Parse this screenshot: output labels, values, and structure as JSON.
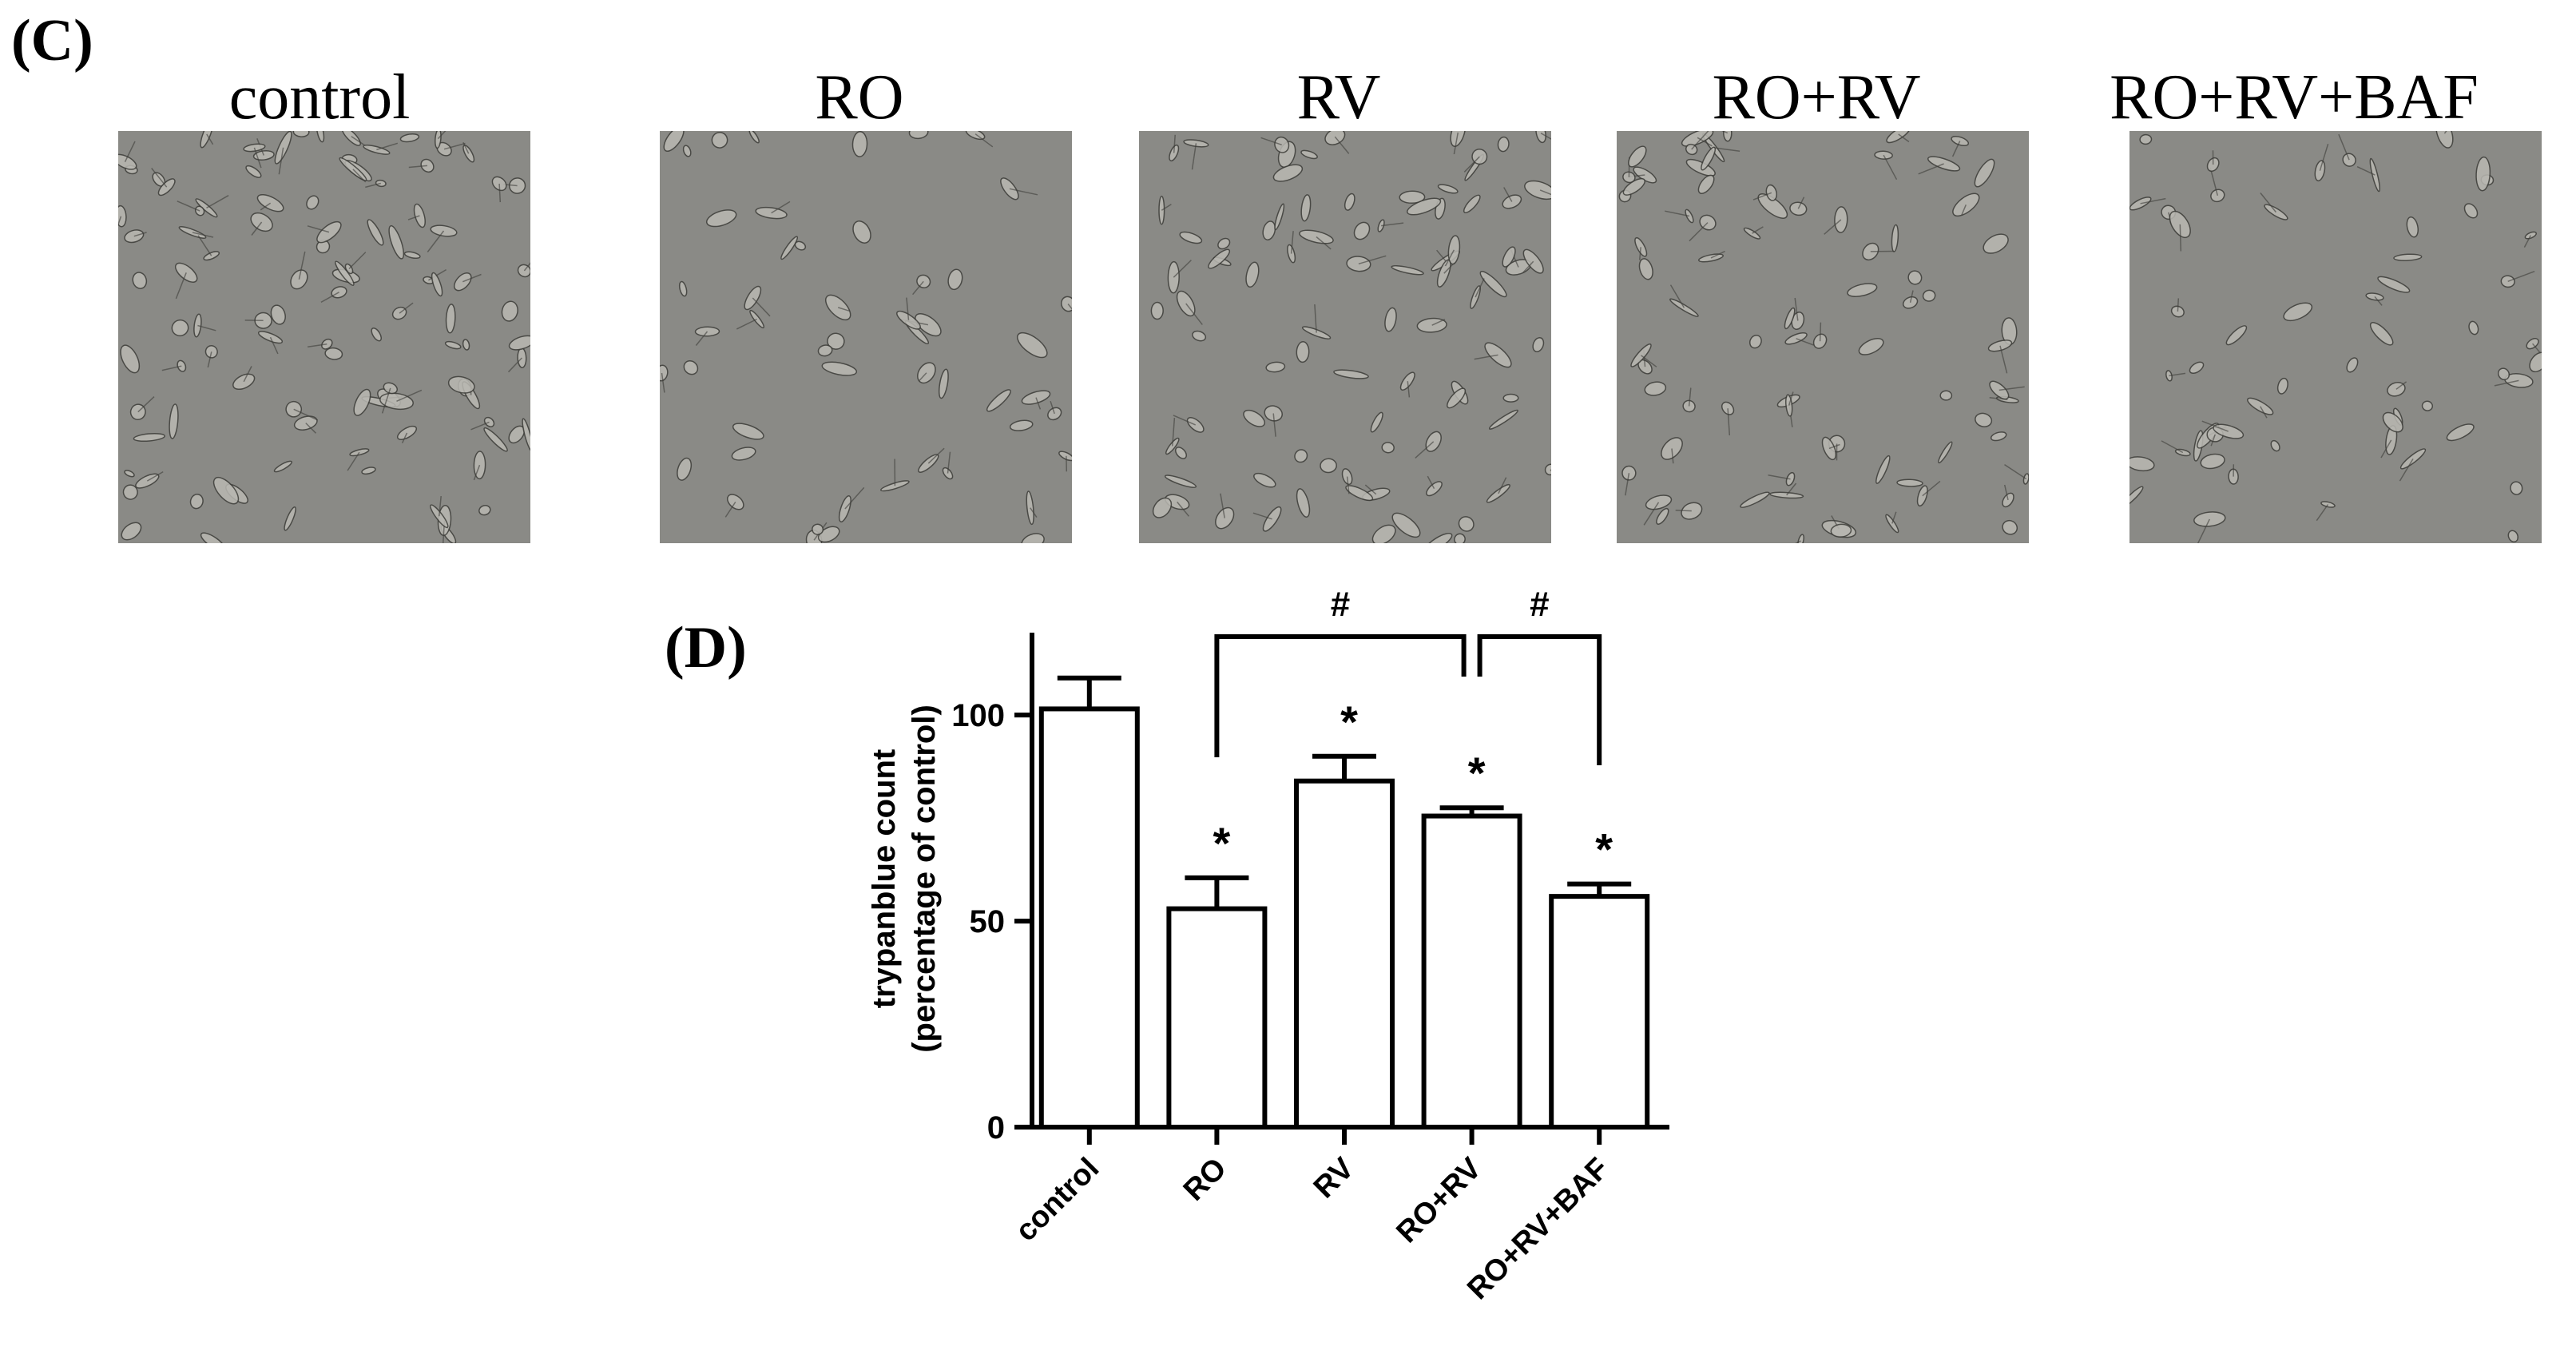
{
  "panels": {
    "c_label": "(C)",
    "d_label": "(D)"
  },
  "images": [
    {
      "title": "control",
      "density": 0.95
    },
    {
      "title": "RO",
      "density": 0.45
    },
    {
      "title": "RV",
      "density": 0.8
    },
    {
      "title": "RO+RV",
      "density": 0.7
    },
    {
      "title": "RO+RV+BAF",
      "density": 0.5
    }
  ],
  "colors": {
    "micrograph_background": "#8a8a86",
    "cell_fill": "#b9b8b2",
    "cell_edge": "#3e3e3a",
    "bar_fill": "#ffffff",
    "stroke": "#000000"
  },
  "chart_data": {
    "type": "bar",
    "categories": [
      "control",
      "RO",
      "RV",
      "RO+RV",
      "RO+RV+BAF"
    ],
    "values": [
      101.5,
      53,
      84,
      75.5,
      56
    ],
    "errors": [
      7.5,
      7.5,
      6,
      2,
      3
    ],
    "annotations": [
      "",
      "*",
      "*",
      "*",
      "*"
    ],
    "ylabel_line1": "trypanblue count",
    "ylabel_line2": "(percentage of control)",
    "ylim": [
      0,
      120
    ],
    "yticks": [
      0,
      50,
      100
    ],
    "brackets": [
      {
        "from": "RO",
        "to": "RO+RV",
        "label": "#"
      },
      {
        "from": "RO+RV",
        "to": "RO+RV+BAF",
        "label": "#"
      }
    ],
    "grid": false,
    "legend": "none"
  }
}
